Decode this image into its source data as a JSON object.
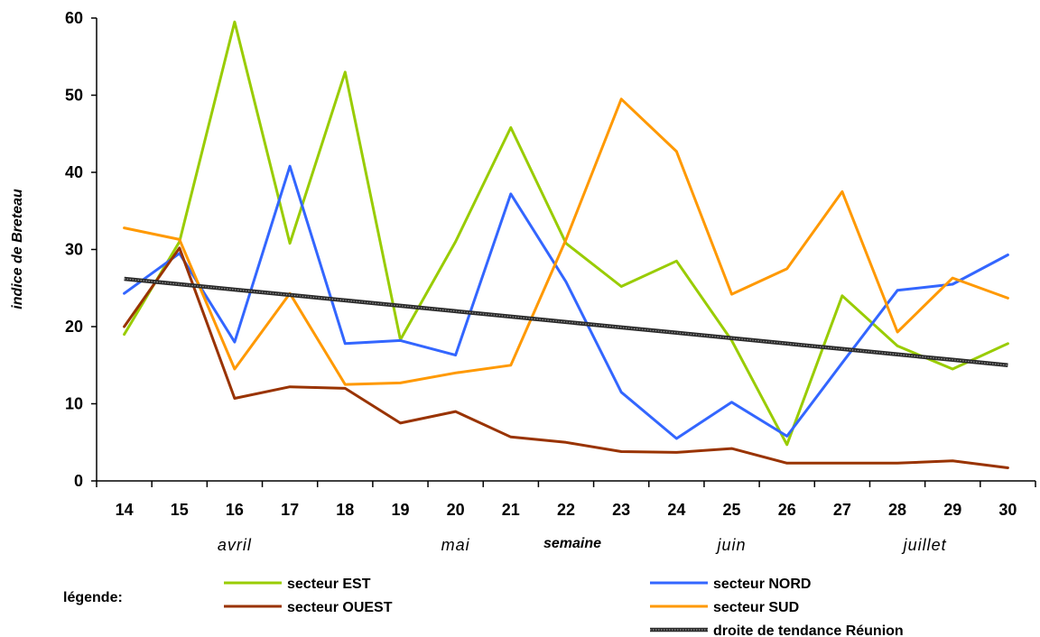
{
  "chart_data": {
    "type": "line",
    "xlabel": "semaine",
    "ylabel": "indice de Breteau",
    "categories": [
      "14",
      "15",
      "16",
      "17",
      "18",
      "19",
      "20",
      "21",
      "22",
      "23",
      "24",
      "25",
      "26",
      "27",
      "28",
      "29",
      "30"
    ],
    "ylim": [
      0,
      60
    ],
    "yticks": [
      0,
      10,
      20,
      30,
      40,
      50,
      60
    ],
    "months": [
      {
        "label": "avril",
        "at_week": "16"
      },
      {
        "label": "mai",
        "at_week": "20"
      },
      {
        "label": "juin",
        "at_week": "25"
      },
      {
        "label": "juillet",
        "at_week": "28.5"
      }
    ],
    "legend_title": "légende:",
    "legend_position": "bottom",
    "grid": false,
    "series": [
      {
        "name": "secteur EST",
        "color": "#99CC00",
        "style": "solid",
        "values": [
          19,
          31,
          59.5,
          30.8,
          53,
          18.3,
          31,
          45.8,
          30.8,
          25.2,
          28.5,
          18.2,
          4.7,
          24,
          17.5,
          14.5,
          17.8
        ]
      },
      {
        "name": "secteur NORD",
        "color": "#3366FF",
        "style": "solid",
        "values": [
          24.3,
          29.5,
          18,
          40.8,
          17.8,
          18.2,
          16.3,
          37.2,
          25.8,
          11.5,
          5.5,
          10.2,
          5.8,
          15.3,
          24.7,
          25.5,
          29.3
        ]
      },
      {
        "name": "secteur OUEST",
        "color": "#993300",
        "style": "solid",
        "values": [
          20,
          30.2,
          10.7,
          12.2,
          12,
          7.5,
          9,
          5.7,
          5,
          3.8,
          3.7,
          4.2,
          2.3,
          2.3,
          2.3,
          2.6,
          1.7
        ]
      },
      {
        "name": "secteur SUD",
        "color": "#FF9900",
        "style": "solid",
        "values": [
          32.8,
          31.3,
          14.5,
          24.3,
          12.5,
          12.7,
          14,
          15,
          31.3,
          49.5,
          42.7,
          24.2,
          27.5,
          37.5,
          19.3,
          26.3,
          23.7
        ]
      },
      {
        "name": "droite de tendance Réunion",
        "color": "#444444",
        "style": "trend",
        "values": [
          26.2,
          25.5,
          24.8,
          24.1,
          23.4,
          22.7,
          22,
          21.3,
          20.6,
          19.9,
          19.2,
          18.5,
          17.8,
          17.1,
          16.4,
          15.7,
          15
        ]
      }
    ]
  }
}
